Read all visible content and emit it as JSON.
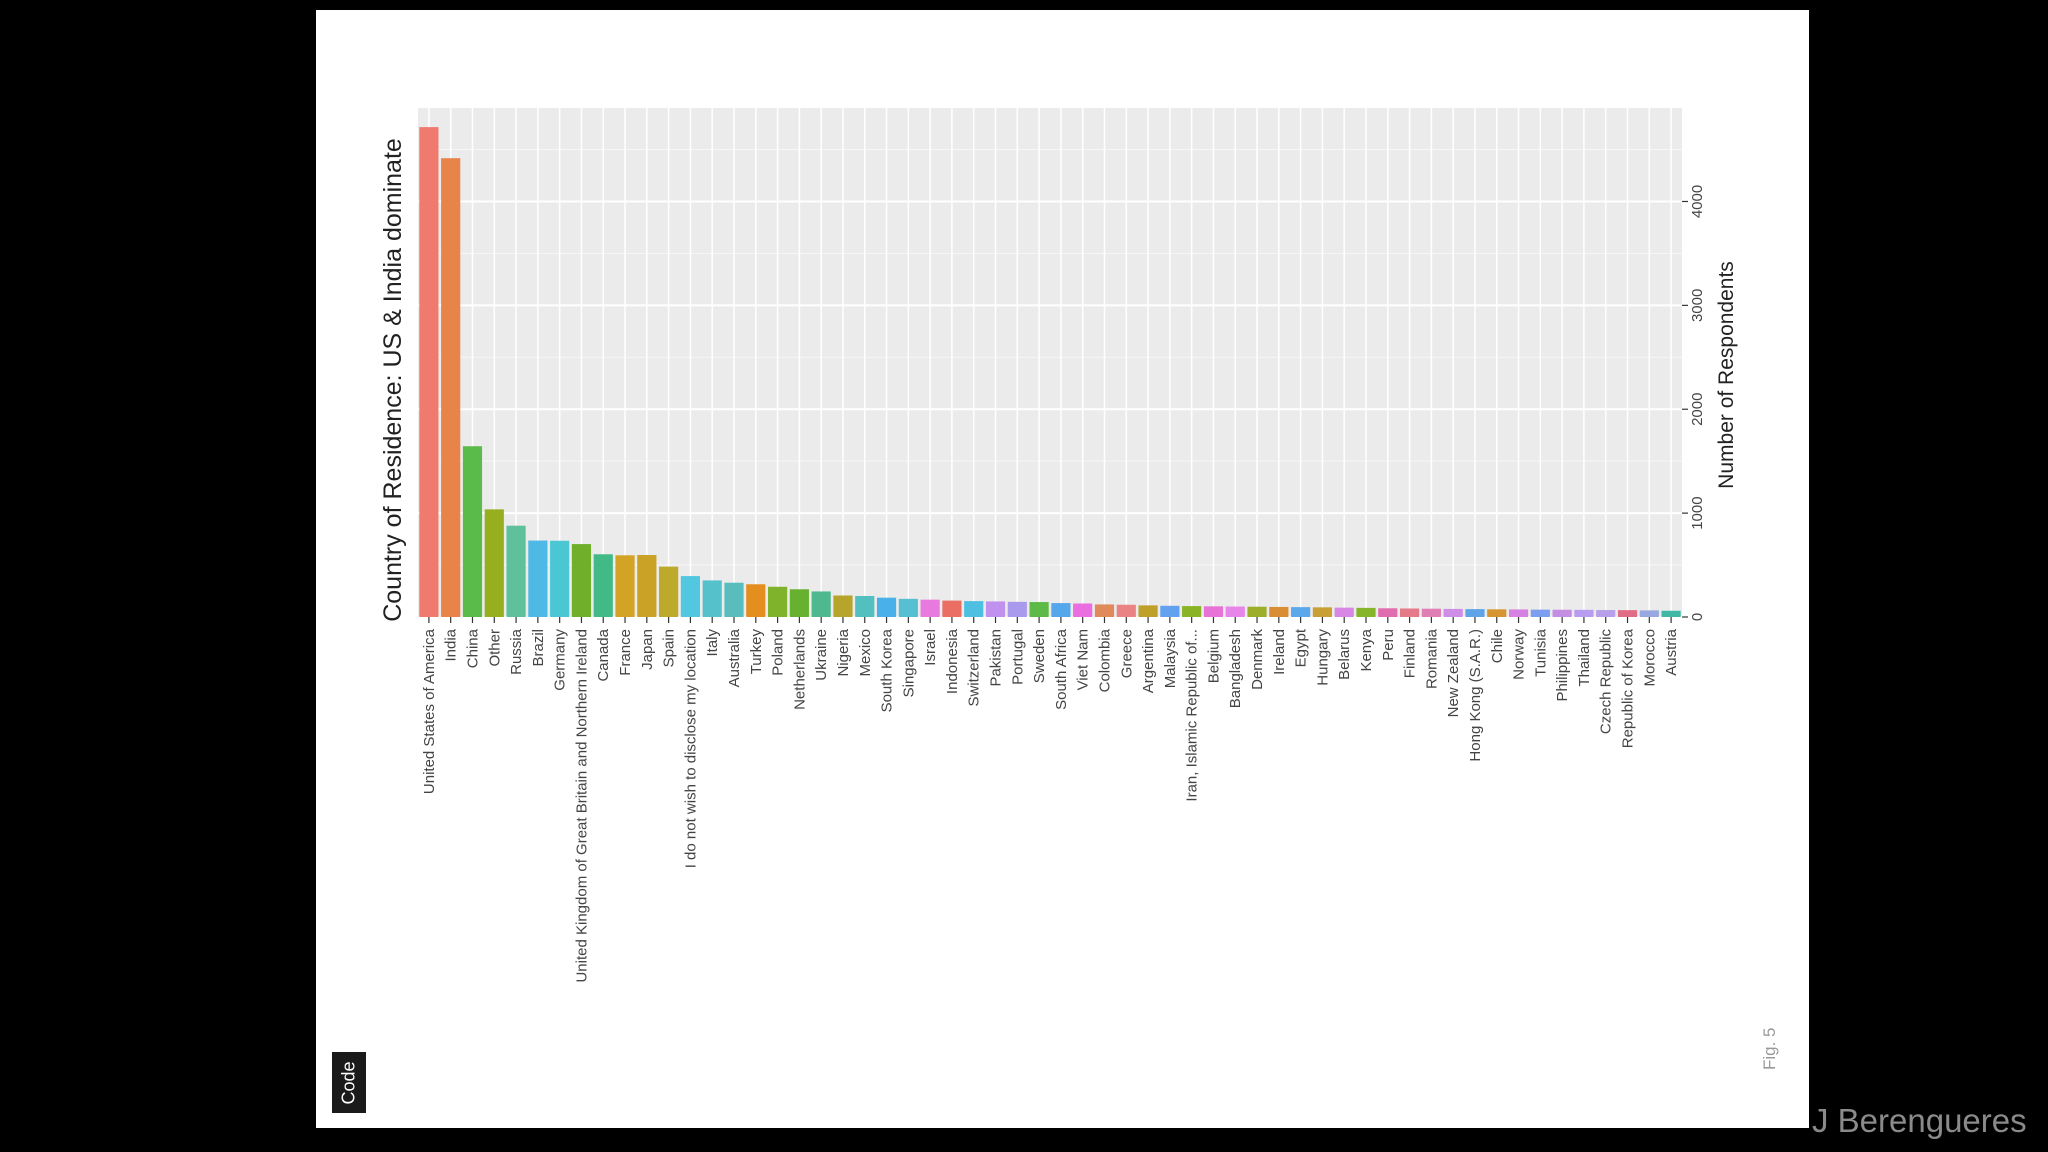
{
  "slide": {
    "code_button_label": "Code",
    "fig_label": "Fig. 5",
    "credit": "J Berengueres"
  },
  "colors": {
    "panel_bg": "#ebebeb",
    "grid": "#ffffff",
    "text": "#222222",
    "tick_text": "#444444"
  },
  "chart_data": {
    "type": "bar",
    "orientation": "rotated-90",
    "title": "Country of Residence: US & India dominate",
    "xlabel": "",
    "ylabel": "Number of Respondents",
    "ylim": [
      0,
      4900
    ],
    "yticks": [
      0,
      1000,
      2000,
      3000,
      4000
    ],
    "grid": true,
    "legend": "none",
    "categories": [
      "United States of America",
      "India",
      "China",
      "Other",
      "Russia",
      "Brazil",
      "Germany",
      "United Kingdom of Great Britain and Northern Ireland",
      "Canada",
      "France",
      "Japan",
      "Spain",
      "I do not wish to disclose my location",
      "Italy",
      "Australia",
      "Turkey",
      "Poland",
      "Netherlands",
      "Ukraine",
      "Nigeria",
      "Mexico",
      "South Korea",
      "Singapore",
      "Israel",
      "Indonesia",
      "Switzerland",
      "Pakistan",
      "Portugal",
      "Sweden",
      "South Africa",
      "Viet Nam",
      "Colombia",
      "Greece",
      "Argentina",
      "Malaysia",
      "Iran, Islamic Republic of...",
      "Belgium",
      "Bangladesh",
      "Denmark",
      "Ireland",
      "Egypt",
      "Hungary",
      "Belarus",
      "Kenya",
      "Peru",
      "Finland",
      "Romania",
      "New Zealand",
      "Hong Kong (S.A.R.)",
      "Chile",
      "Norway",
      "Tunisia",
      "Philippines",
      "Thailand",
      "Czech Republic",
      "Republic of Korea",
      "Morocco",
      "Austria"
    ],
    "values": [
      4716,
      4417,
      1644,
      1036,
      879,
      736,
      734,
      702,
      604,
      594,
      597,
      485,
      394,
      352,
      330,
      315,
      291,
      267,
      246,
      207,
      202,
      186,
      175,
      167,
      158,
      153,
      150,
      146,
      144,
      134,
      130,
      121,
      118,
      112,
      108,
      105,
      103,
      101,
      99,
      97,
      95,
      93,
      90,
      88,
      84,
      82,
      80,
      78,
      76,
      74,
      73,
      71,
      70,
      69,
      67,
      66,
      64,
      60
    ],
    "bar_colors": [
      "#F07A6D",
      "#E8844A",
      "#5BBB4A",
      "#97AE1F",
      "#5FC19B",
      "#4EB9E4",
      "#4BC7D4",
      "#6FAF29",
      "#42BA88",
      "#D2A325",
      "#C9A226",
      "#BDA92B",
      "#51C7E0",
      "#54C1CB",
      "#59BDBE",
      "#E38E1E",
      "#7EB32B",
      "#67B030",
      "#4EB88F",
      "#B6A52A",
      "#53C0C0",
      "#4AB0EA",
      "#56BFD1",
      "#E779DF",
      "#EA6E63",
      "#4DBFE0",
      "#C191EF",
      "#A99AEE",
      "#5DBA48",
      "#55A7EB",
      "#EA6EDF",
      "#E2895C",
      "#EA8484",
      "#BFA02A",
      "#62A1EE",
      "#8AB326",
      "#E873D8",
      "#E885E8",
      "#9DAF2A",
      "#D98E35",
      "#5BA8EC",
      "#C8A035",
      "#D987E5",
      "#86B42B",
      "#E06EAF",
      "#E57A88",
      "#E07FB6",
      "#CE8EE8",
      "#5DA5E8",
      "#D79532",
      "#D782E2",
      "#7C9EEF",
      "#C48EE4",
      "#B89CEF",
      "#B7A0E9",
      "#E06C85",
      "#9AA8E2",
      "#3FB9A6"
    ]
  }
}
